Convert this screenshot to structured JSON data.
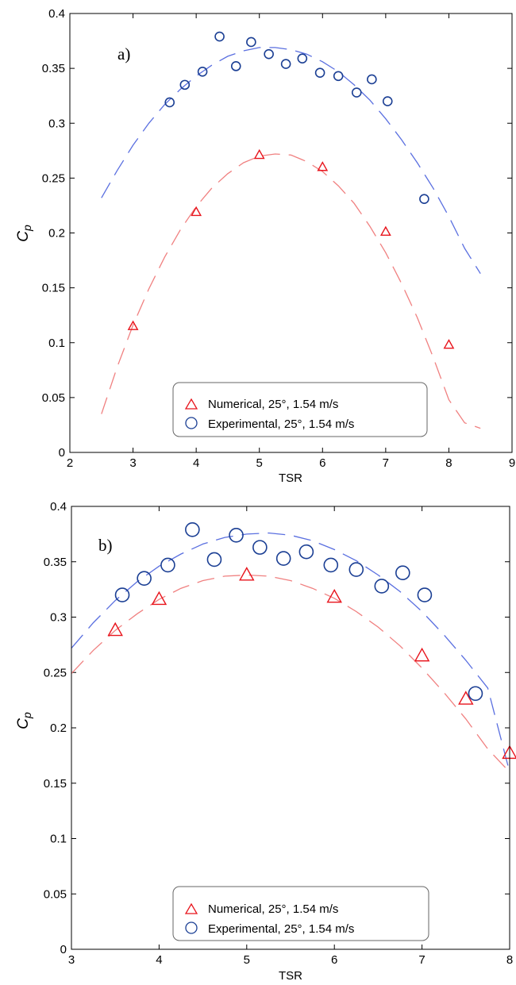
{
  "colors": {
    "numerical": "#e8141c",
    "experimental": "#1b3f94",
    "numerical_fit": "#f08080",
    "experimental_fit": "#5a6fe0"
  },
  "chart_data": [
    {
      "type": "scatter",
      "panel_label": "a)",
      "xlabel": "TSR",
      "ylabel": "C",
      "ylabel_sub": "p",
      "xlim": [
        2,
        9
      ],
      "ylim": [
        0,
        0.4
      ],
      "xticks": [
        2,
        3,
        4,
        5,
        6,
        7,
        8,
        9
      ],
      "yticks": [
        0,
        0.05,
        0.1,
        0.15,
        0.2,
        0.25,
        0.3,
        0.35,
        0.4
      ],
      "ytick_labels": [
        "0",
        "0.05",
        "0.1",
        "0.15",
        "0.2",
        "0.25",
        "0.3",
        "0.35",
        "0.4"
      ],
      "grid": false,
      "legend_position": "bottom-center",
      "series": [
        {
          "name": "Numerical, 25°, 1.54 m/s",
          "marker": "triangle",
          "x": [
            3,
            4,
            5,
            6,
            7,
            8
          ],
          "y": [
            0.115,
            0.219,
            0.271,
            0.26,
            0.201,
            0.098
          ],
          "fit_x": [
            2.5,
            2.75,
            3,
            3.25,
            3.5,
            3.75,
            4,
            4.25,
            4.5,
            4.75,
            5,
            5.25,
            5.5,
            5.75,
            6,
            6.25,
            6.5,
            6.75,
            7,
            7.25,
            7.5,
            7.75,
            8,
            8.25,
            8.5
          ],
          "fit_y": [
            0.035,
            0.078,
            0.116,
            0.149,
            0.178,
            0.203,
            0.224,
            0.241,
            0.254,
            0.264,
            0.27,
            0.272,
            0.271,
            0.265,
            0.256,
            0.243,
            0.227,
            0.206,
            0.182,
            0.154,
            0.123,
            0.087,
            0.048,
            0.027,
            0.022
          ]
        },
        {
          "name": "Experimental, 25°, 1.54 m/s",
          "marker": "circle",
          "x": [
            3.58,
            3.82,
            4.1,
            4.37,
            4.63,
            4.87,
            5.15,
            5.42,
            5.68,
            5.96,
            6.25,
            6.54,
            6.78,
            7.03,
            7.61
          ],
          "y": [
            0.319,
            0.335,
            0.347,
            0.379,
            0.352,
            0.374,
            0.363,
            0.354,
            0.359,
            0.346,
            0.343,
            0.328,
            0.34,
            0.32,
            0.231
          ],
          "fit_x": [
            2.5,
            2.75,
            3,
            3.25,
            3.5,
            3.75,
            4,
            4.25,
            4.5,
            4.75,
            5,
            5.25,
            5.5,
            5.75,
            6,
            6.25,
            6.5,
            6.75,
            7,
            7.25,
            7.5,
            7.75,
            8,
            8.25,
            8.5
          ],
          "fit_y": [
            0.232,
            0.257,
            0.28,
            0.3,
            0.317,
            0.331,
            0.343,
            0.353,
            0.361,
            0.366,
            0.369,
            0.369,
            0.367,
            0.363,
            0.356,
            0.347,
            0.335,
            0.321,
            0.304,
            0.285,
            0.264,
            0.241,
            0.215,
            0.186,
            0.163
          ]
        }
      ]
    },
    {
      "type": "scatter",
      "panel_label": "b)",
      "xlabel": "TSR",
      "ylabel": "C",
      "ylabel_sub": "p",
      "xlim": [
        3,
        8
      ],
      "ylim": [
        0,
        0.4
      ],
      "xticks": [
        3,
        4,
        5,
        6,
        7,
        8
      ],
      "yticks": [
        0,
        0.05,
        0.1,
        0.15,
        0.2,
        0.25,
        0.3,
        0.35,
        0.4
      ],
      "ytick_labels": [
        "0",
        "0.05",
        "0.1",
        "0.15",
        "0.2",
        "0.25",
        "0.3",
        "0.35",
        "0.4"
      ],
      "grid": false,
      "legend_position": "bottom-center",
      "series": [
        {
          "name": "Numerical, 25°, 1.54 m/s",
          "marker": "triangle",
          "x": [
            3.5,
            4,
            5,
            6,
            7,
            7.5,
            8
          ],
          "y": [
            0.288,
            0.316,
            0.338,
            0.318,
            0.265,
            0.226,
            0.177
          ],
          "fit_x": [
            3,
            3.25,
            3.5,
            3.75,
            4,
            4.25,
            4.5,
            4.75,
            5,
            5.25,
            5.5,
            5.75,
            6,
            6.25,
            6.5,
            6.75,
            7,
            7.25,
            7.5,
            7.75,
            8
          ],
          "fit_y": [
            0.249,
            0.27,
            0.288,
            0.303,
            0.316,
            0.326,
            0.333,
            0.337,
            0.338,
            0.337,
            0.333,
            0.326,
            0.317,
            0.305,
            0.291,
            0.274,
            0.254,
            0.232,
            0.208,
            0.181,
            0.16
          ]
        },
        {
          "name": "Experimental, 25°, 1.54 m/s",
          "marker": "circle",
          "x": [
            3.58,
            3.83,
            4.1,
            4.38,
            4.63,
            4.88,
            5.15,
            5.42,
            5.68,
            5.96,
            6.25,
            6.54,
            6.78,
            7.03,
            7.61
          ],
          "y": [
            0.32,
            0.335,
            0.347,
            0.379,
            0.352,
            0.374,
            0.363,
            0.353,
            0.359,
            0.347,
            0.343,
            0.328,
            0.34,
            0.32,
            0.231
          ],
          "fit_x": [
            3,
            3.25,
            3.5,
            3.75,
            4,
            4.25,
            4.5,
            4.75,
            5,
            5.25,
            5.5,
            5.75,
            6,
            6.25,
            6.5,
            6.75,
            7,
            7.25,
            7.5,
            7.75,
            8
          ],
          "fit_y": [
            0.272,
            0.295,
            0.315,
            0.332,
            0.346,
            0.357,
            0.366,
            0.372,
            0.375,
            0.376,
            0.374,
            0.369,
            0.361,
            0.351,
            0.338,
            0.323,
            0.305,
            0.284,
            0.261,
            0.236,
            0.16
          ]
        }
      ]
    }
  ]
}
